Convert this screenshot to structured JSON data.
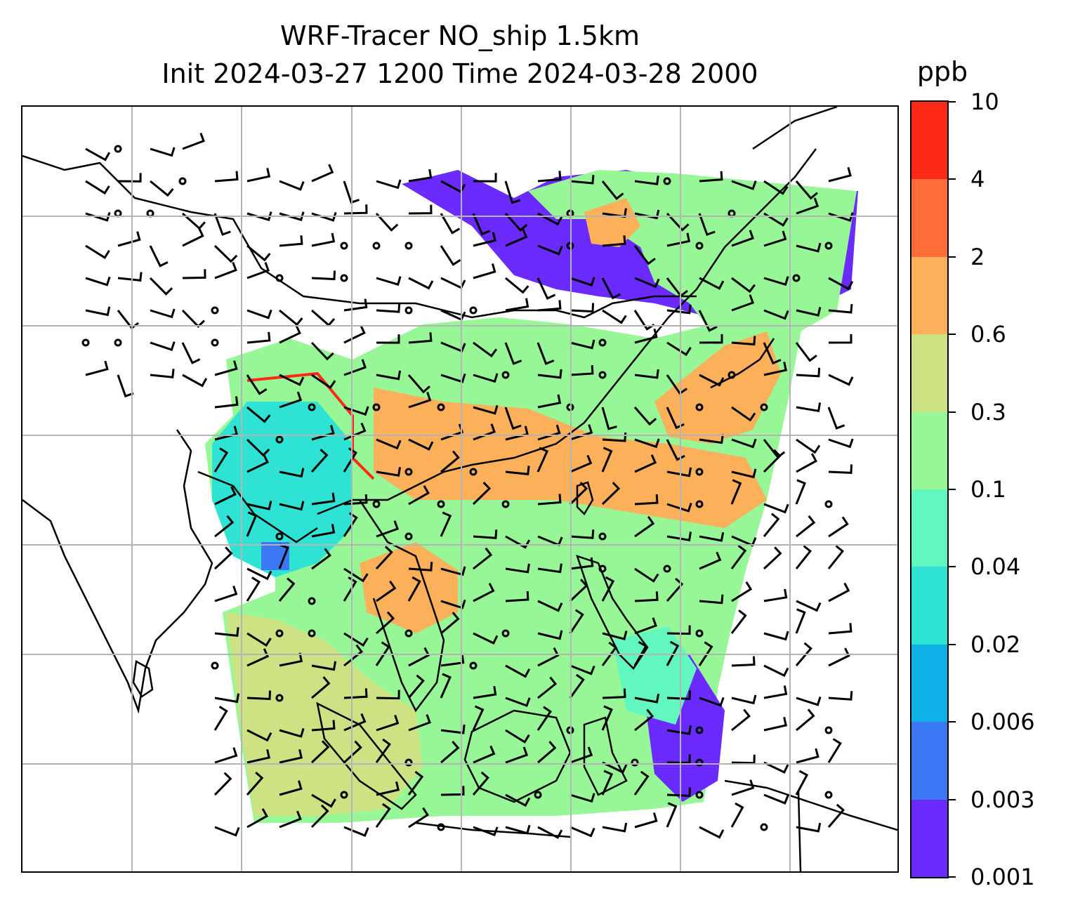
{
  "title_line1": "WRF-Tracer NO_ship 1.5km",
  "title_line2": "Init 2024-03-27 1200 Time 2024-03-28 2000",
  "colorbar": {
    "unit": "ppb",
    "levels": [
      "0.001",
      "0.003",
      "0.006",
      "0.02",
      "0.04",
      "0.1",
      "0.3",
      "0.6",
      "2",
      "4",
      "10"
    ],
    "colors": [
      "#6b2bff",
      "#3a78f4",
      "#0fb0e6",
      "#2ee2d4",
      "#63f7c0",
      "#97f797",
      "#cde383",
      "#fdb05a",
      "#ff6e38",
      "#ff2a16"
    ]
  },
  "map": {
    "gridlines": true,
    "gridline_color": "#b4b4b4",
    "land_outline_color": "#000000"
  }
}
